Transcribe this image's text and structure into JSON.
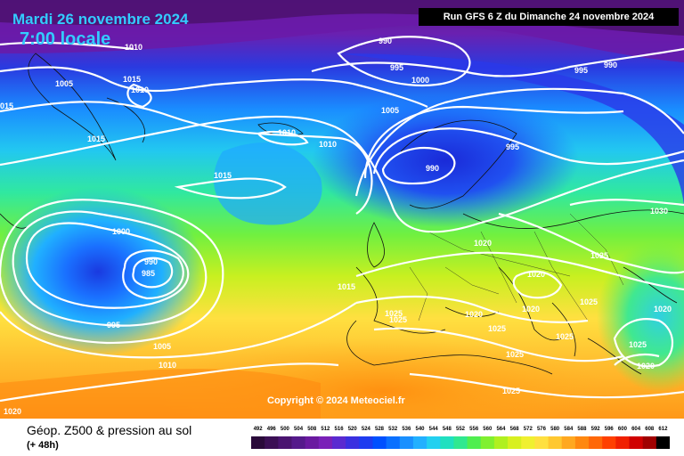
{
  "header": {
    "date": "Mardi 26 novembre 2024",
    "time": "7:00 locale",
    "run": "Run GFS 6 Z du Dimanche 24 novembre 2024"
  },
  "copyright": "Copyright © 2024 Meteociel.fr",
  "legend": {
    "title": "Géop. Z500 & pression au sol",
    "subtitle": "(+ 48h)",
    "scale": [
      "492",
      "496",
      "500",
      "504",
      "508",
      "512",
      "516",
      "520",
      "524",
      "528",
      "532",
      "536",
      "540",
      "544",
      "548",
      "552",
      "556",
      "560",
      "564",
      "568",
      "572",
      "576",
      "580",
      "584",
      "588",
      "592",
      "596",
      "600",
      "604",
      "608",
      "612"
    ],
    "colors": [
      "#2a0a3a",
      "#3b0f55",
      "#4a1470",
      "#551a8b",
      "#6a1aa0",
      "#7a20b8",
      "#5a2ad0",
      "#3a30e0",
      "#1e3cf0",
      "#0050ff",
      "#0a70ff",
      "#1a90ff",
      "#22b0ff",
      "#22d0f0",
      "#20e0c0",
      "#30e890",
      "#50ee50",
      "#80f030",
      "#b0f020",
      "#d8f020",
      "#f0f030",
      "#ffe040",
      "#ffc830",
      "#ffa820",
      "#ff8810",
      "#ff6808",
      "#ff4000",
      "#f02000",
      "#d00000",
      "#a00000",
      "#000000"
    ]
  },
  "isobars": [
    {
      "label": "1010",
      "text_color": "#ffffff"
    },
    {
      "label": "1005"
    },
    {
      "label": "1010"
    },
    {
      "label": "1015"
    },
    {
      "label": "015"
    },
    {
      "label": "1015"
    },
    {
      "label": "1010"
    },
    {
      "label": "1010"
    },
    {
      "label": "1015"
    },
    {
      "label": "1000"
    },
    {
      "label": "990"
    },
    {
      "label": "985"
    },
    {
      "label": "995"
    },
    {
      "label": "1005"
    },
    {
      "label": "1010"
    },
    {
      "label": "1020"
    },
    {
      "label": "990"
    },
    {
      "label": "995"
    },
    {
      "label": "1000"
    },
    {
      "label": "1005"
    },
    {
      "label": "990"
    },
    {
      "label": "995"
    },
    {
      "label": "995"
    },
    {
      "label": "990"
    },
    {
      "label": "1015"
    },
    {
      "label": "1020"
    },
    {
      "label": "1025"
    },
    {
      "label": "1020"
    },
    {
      "label": "1020"
    },
    {
      "label": "1025"
    },
    {
      "label": "1025"
    },
    {
      "label": "1025"
    },
    {
      "label": "1020"
    },
    {
      "label": "1025"
    },
    {
      "label": "1025"
    },
    {
      "label": "1030"
    },
    {
      "label": "1025"
    },
    {
      "label": "1020"
    },
    {
      "label": "1025"
    },
    {
      "label": "1020"
    },
    {
      "label": "1025"
    }
  ]
}
